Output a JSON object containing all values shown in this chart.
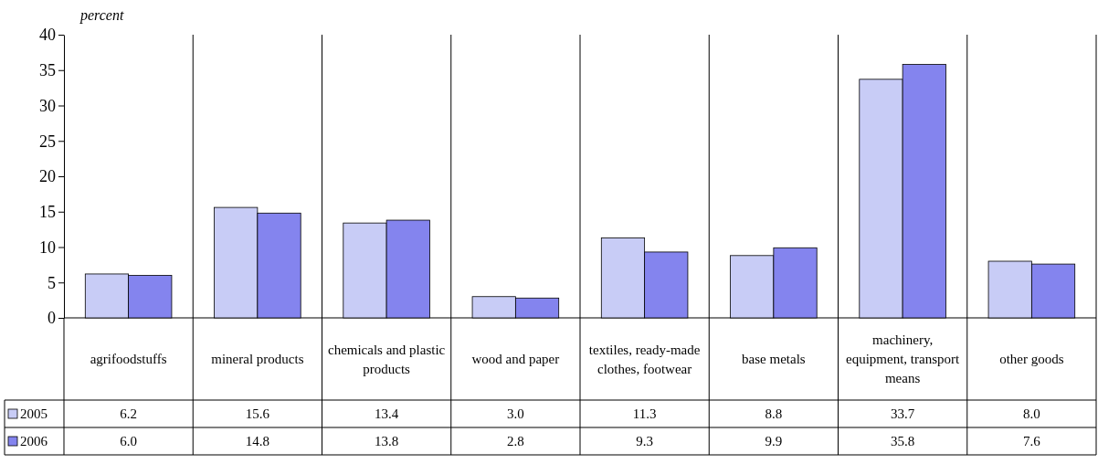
{
  "chart_data": {
    "type": "bar",
    "ylabel": "percent",
    "categories": [
      "agrifoodstuffs",
      "mineral products",
      "chemicals and plastic products",
      "wood and paper",
      "textiles, ready-made clothes, footwear",
      "base metals",
      "machinery, equipment, transport means",
      "other goods"
    ],
    "series": [
      {
        "name": "2005",
        "color": "#c8ccf6",
        "values": [
          6.2,
          15.6,
          13.4,
          3.0,
          11.3,
          8.8,
          33.7,
          8.0
        ],
        "value_labels": [
          "6.2",
          "15.6",
          "13.4",
          "3.0",
          "11.3",
          "8.8",
          "33.7",
          "8.0"
        ]
      },
      {
        "name": "2006",
        "color": "#8484ee",
        "values": [
          6.0,
          14.8,
          13.8,
          2.8,
          9.3,
          9.9,
          35.8,
          7.6
        ],
        "value_labels": [
          "6.0",
          "14.8",
          "13.8",
          "2.8",
          "9.3",
          "9.9",
          "35.8",
          "7.6"
        ]
      }
    ],
    "ylim": [
      0,
      40
    ],
    "yticks": [
      0,
      5,
      10,
      15,
      20,
      25,
      30,
      35,
      40
    ],
    "legend": "bottom left"
  }
}
